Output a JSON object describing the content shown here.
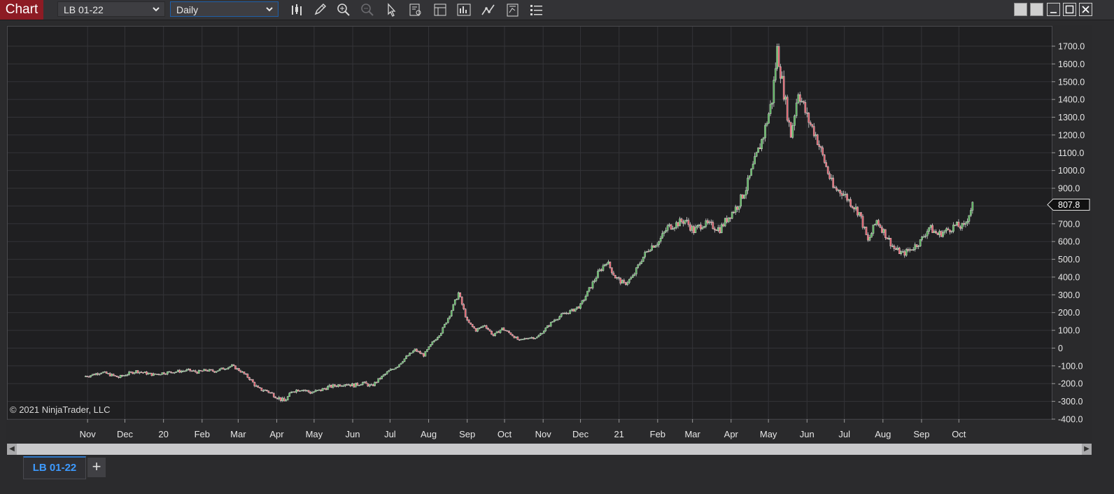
{
  "toolbar": {
    "chart_button": "Chart",
    "instrument": "LB 01-22",
    "interval": "Daily",
    "icons": [
      "bars-type-icon",
      "pencil-icon",
      "zoom-in-icon",
      "zoom-out-icon",
      "pointer-icon",
      "data-box-icon",
      "properties-icon",
      "indicators-icon",
      "strategies-icon",
      "chart-trader-icon",
      "list-icon"
    ]
  },
  "window_buttons": [
    "snap-left-icon",
    "snap-right-icon",
    "minimize-icon",
    "maximize-icon",
    "close-icon"
  ],
  "copyright": "© 2021 NinjaTrader, LLC",
  "tabs": [
    {
      "label": "LB 01-22"
    }
  ],
  "add_tab_label": "+",
  "colors": {
    "up": "#58b45b",
    "down": "#e15f6b",
    "background": "#1f1f21",
    "grid": "#343438",
    "text": "#e6e6e6"
  },
  "chart_data": {
    "type": "candlestick",
    "instrument": "LB 01-22",
    "interval": "Daily",
    "current_price": "807.8",
    "y_ticks": [
      "1700.0",
      "1600.0",
      "1500.0",
      "1400.0",
      "1300.0",
      "1200.0",
      "1100.0",
      "1000.0",
      "900.0",
      "800.0",
      "700.0",
      "600.0",
      "500.0",
      "400.0",
      "300.0",
      "200.0",
      "100.0",
      "0",
      "-100.0",
      "-200.0",
      "-300.0",
      "-400.0"
    ],
    "x_labels": [
      "Nov",
      "Dec",
      "20",
      "Feb",
      "Mar",
      "Apr",
      "May",
      "Jun",
      "Jul",
      "Aug",
      "Sep",
      "Oct",
      "Nov",
      "Dec",
      "21",
      "Feb",
      "Mar",
      "Apr",
      "May",
      "Jun",
      "Jul",
      "Aug",
      "Sep",
      "Oct"
    ],
    "ylim": [
      -400,
      1700
    ],
    "series": [
      {
        "date": "2019-10-29",
        "close": -160
      },
      {
        "date": "2019-11-05",
        "close": -150
      },
      {
        "date": "2019-11-12",
        "close": -135
      },
      {
        "date": "2019-11-19",
        "close": -150
      },
      {
        "date": "2019-11-26",
        "close": -165
      },
      {
        "date": "2019-12-03",
        "close": -145
      },
      {
        "date": "2019-12-10",
        "close": -130
      },
      {
        "date": "2019-12-17",
        "close": -140
      },
      {
        "date": "2019-12-24",
        "close": -150
      },
      {
        "date": "2019-12-31",
        "close": -140
      },
      {
        "date": "2020-01-07",
        "close": -135
      },
      {
        "date": "2020-01-14",
        "close": -130
      },
      {
        "date": "2020-01-21",
        "close": -125
      },
      {
        "date": "2020-01-28",
        "close": -135
      },
      {
        "date": "2020-02-04",
        "close": -125
      },
      {
        "date": "2020-02-11",
        "close": -130
      },
      {
        "date": "2020-02-18",
        "close": -115
      },
      {
        "date": "2020-02-25",
        "close": -100
      },
      {
        "date": "2020-03-03",
        "close": -130
      },
      {
        "date": "2020-03-10",
        "close": -170
      },
      {
        "date": "2020-03-17",
        "close": -230
      },
      {
        "date": "2020-03-24",
        "close": -240
      },
      {
        "date": "2020-03-31",
        "close": -270
      },
      {
        "date": "2020-04-07",
        "close": -300
      },
      {
        "date": "2020-04-14",
        "close": -240
      },
      {
        "date": "2020-04-21",
        "close": -230
      },
      {
        "date": "2020-04-28",
        "close": -250
      },
      {
        "date": "2020-05-05",
        "close": -240
      },
      {
        "date": "2020-05-12",
        "close": -220
      },
      {
        "date": "2020-05-19",
        "close": -210
      },
      {
        "date": "2020-05-26",
        "close": -200
      },
      {
        "date": "2020-06-02",
        "close": -210
      },
      {
        "date": "2020-06-09",
        "close": -195
      },
      {
        "date": "2020-06-16",
        "close": -215
      },
      {
        "date": "2020-06-23",
        "close": -170
      },
      {
        "date": "2020-06-30",
        "close": -130
      },
      {
        "date": "2020-07-07",
        "close": -100
      },
      {
        "date": "2020-07-14",
        "close": -50
      },
      {
        "date": "2020-07-21",
        "close": -10
      },
      {
        "date": "2020-07-28",
        "close": -40
      },
      {
        "date": "2020-08-04",
        "close": 30
      },
      {
        "date": "2020-08-11",
        "close": 90
      },
      {
        "date": "2020-08-18",
        "close": 190
      },
      {
        "date": "2020-08-25",
        "close": 310
      },
      {
        "date": "2020-09-01",
        "close": 150
      },
      {
        "date": "2020-09-08",
        "close": 100
      },
      {
        "date": "2020-09-15",
        "close": 130
      },
      {
        "date": "2020-09-22",
        "close": 70
      },
      {
        "date": "2020-09-29",
        "close": 110
      },
      {
        "date": "2020-10-06",
        "close": 80
      },
      {
        "date": "2020-10-13",
        "close": 40
      },
      {
        "date": "2020-10-20",
        "close": 60
      },
      {
        "date": "2020-10-27",
        "close": 60
      },
      {
        "date": "2020-11-03",
        "close": 110
      },
      {
        "date": "2020-11-10",
        "close": 160
      },
      {
        "date": "2020-11-17",
        "close": 190
      },
      {
        "date": "2020-11-24",
        "close": 210
      },
      {
        "date": "2020-12-01",
        "close": 240
      },
      {
        "date": "2020-12-08",
        "close": 330
      },
      {
        "date": "2020-12-15",
        "close": 420
      },
      {
        "date": "2020-12-22",
        "close": 490
      },
      {
        "date": "2020-12-29",
        "close": 400
      },
      {
        "date": "2021-01-05",
        "close": 360
      },
      {
        "date": "2021-01-12",
        "close": 400
      },
      {
        "date": "2021-01-19",
        "close": 500
      },
      {
        "date": "2021-01-26",
        "close": 570
      },
      {
        "date": "2021-02-02",
        "close": 600
      },
      {
        "date": "2021-02-09",
        "close": 680
      },
      {
        "date": "2021-02-16",
        "close": 700
      },
      {
        "date": "2021-02-23",
        "close": 720
      },
      {
        "date": "2021-03-02",
        "close": 660
      },
      {
        "date": "2021-03-09",
        "close": 700
      },
      {
        "date": "2021-03-16",
        "close": 690
      },
      {
        "date": "2021-03-23",
        "close": 670
      },
      {
        "date": "2021-03-30",
        "close": 740
      },
      {
        "date": "2021-04-06",
        "close": 800
      },
      {
        "date": "2021-04-13",
        "close": 900
      },
      {
        "date": "2021-04-20",
        "close": 1050
      },
      {
        "date": "2021-04-27",
        "close": 1200
      },
      {
        "date": "2021-05-04",
        "close": 1400
      },
      {
        "date": "2021-05-08",
        "close": 1680
      },
      {
        "date": "2021-05-12",
        "close": 1500
      },
      {
        "date": "2021-05-19",
        "close": 1200
      },
      {
        "date": "2021-05-25",
        "close": 1450
      },
      {
        "date": "2021-06-01",
        "close": 1300
      },
      {
        "date": "2021-06-08",
        "close": 1200
      },
      {
        "date": "2021-06-15",
        "close": 1050
      },
      {
        "date": "2021-06-22",
        "close": 900
      },
      {
        "date": "2021-06-29",
        "close": 880
      },
      {
        "date": "2021-07-06",
        "close": 820
      },
      {
        "date": "2021-07-13",
        "close": 760
      },
      {
        "date": "2021-07-20",
        "close": 600
      },
      {
        "date": "2021-07-27",
        "close": 720
      },
      {
        "date": "2021-08-03",
        "close": 640
      },
      {
        "date": "2021-08-10",
        "close": 560
      },
      {
        "date": "2021-08-17",
        "close": 530
      },
      {
        "date": "2021-08-24",
        "close": 560
      },
      {
        "date": "2021-08-31",
        "close": 600
      },
      {
        "date": "2021-09-07",
        "close": 680
      },
      {
        "date": "2021-09-14",
        "close": 640
      },
      {
        "date": "2021-09-21",
        "close": 660
      },
      {
        "date": "2021-09-28",
        "close": 690
      },
      {
        "date": "2021-10-05",
        "close": 680
      },
      {
        "date": "2021-10-12",
        "close": 807.8
      }
    ]
  }
}
